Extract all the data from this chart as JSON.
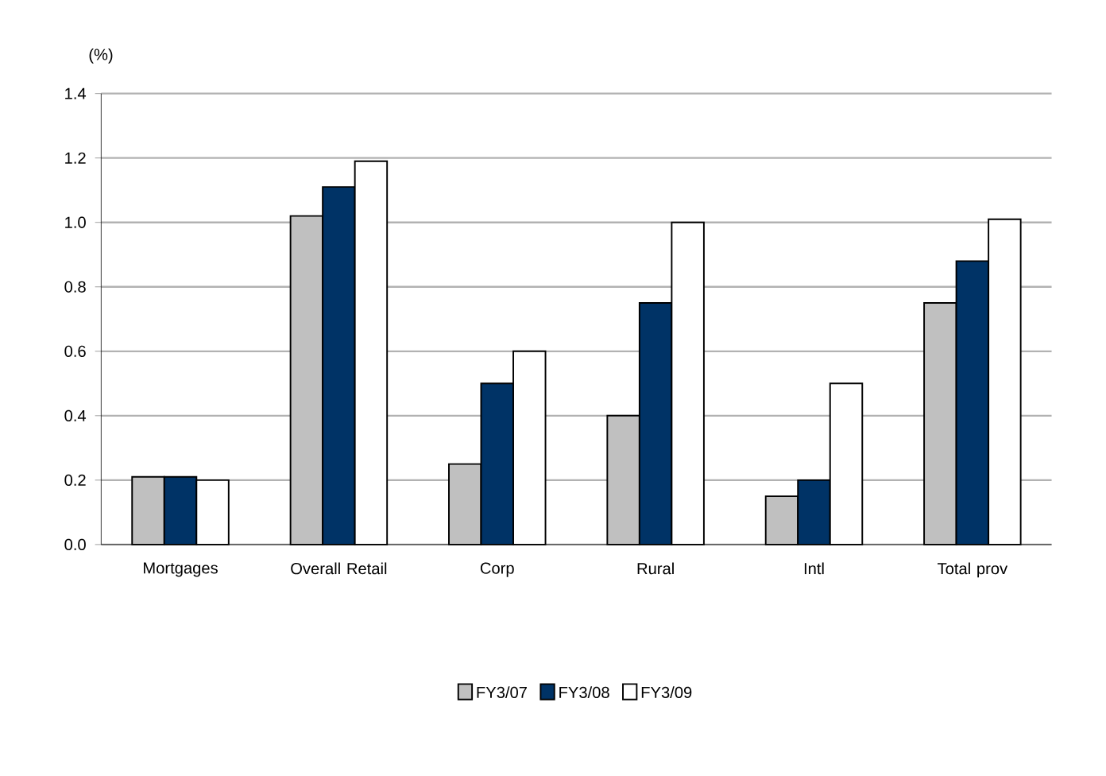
{
  "chart_data": {
    "type": "bar",
    "ylabel": "(%)",
    "categories": [
      "Mortgages",
      "Overall Retail",
      "Corp",
      "Rural",
      "Intl",
      "Total prov"
    ],
    "series": [
      {
        "name": "FY3/07",
        "color": "#c0c0c0",
        "values": [
          0.21,
          1.02,
          0.25,
          0.4,
          0.15,
          0.75
        ]
      },
      {
        "name": "FY3/08",
        "color": "#003366",
        "values": [
          0.21,
          1.11,
          0.5,
          0.75,
          0.2,
          0.88
        ]
      },
      {
        "name": "FY3/09",
        "color": "#ffffff",
        "values": [
          0.2,
          1.19,
          0.6,
          1.0,
          0.5,
          1.01
        ]
      }
    ],
    "ylim": [
      0,
      1.4
    ],
    "yticks": [
      {
        "value": 0,
        "label": "0.0"
      },
      {
        "value": 0.2,
        "label": "0.2"
      },
      {
        "value": 0.4,
        "label": "0.4"
      },
      {
        "value": 0.6,
        "label": "0.6"
      },
      {
        "value": 0.8,
        "label": "0.8"
      },
      {
        "value": 1.0,
        "label": "1.0"
      },
      {
        "value": 1.2,
        "label": "1.2"
      },
      {
        "value": 1.4,
        "label": "1.4"
      }
    ],
    "grid": "y",
    "legend": "bottom"
  }
}
